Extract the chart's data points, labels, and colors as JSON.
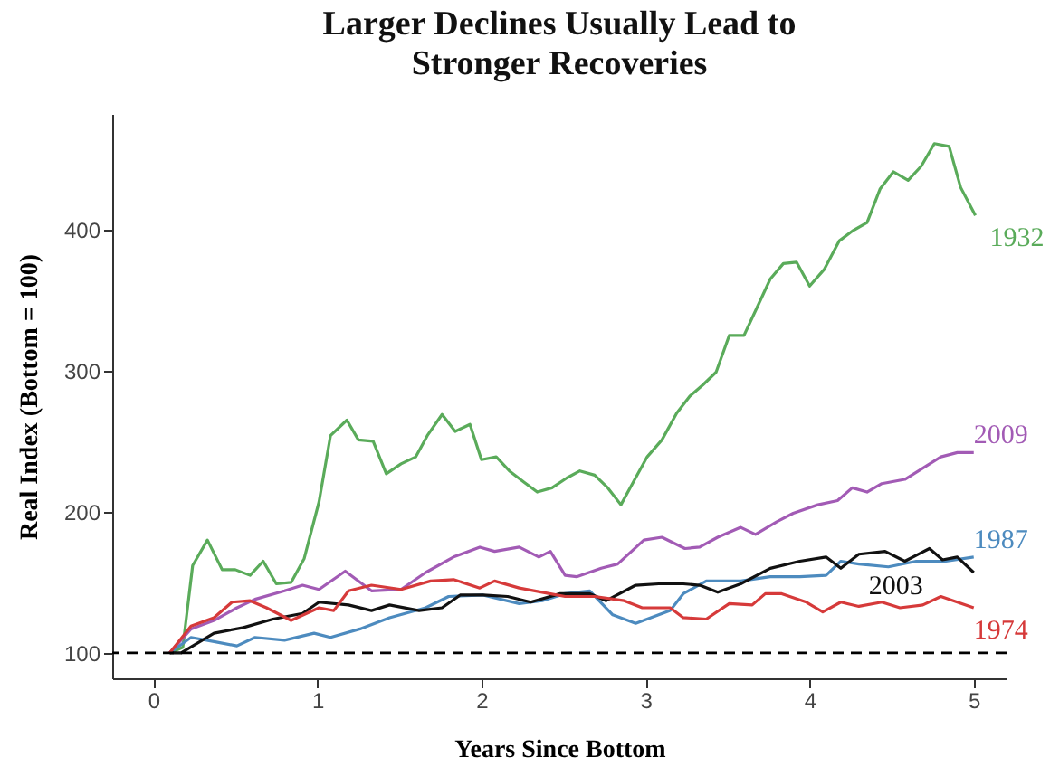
{
  "chart_data": {
    "type": "line",
    "title": "Larger Declines Usually Lead to Stronger Recoveries",
    "xlabel": "Years Since Bottom",
    "ylabel": "Real Index (Bottom = 100)",
    "xlim": [
      -0.25,
      5.2
    ],
    "xticks": [
      0,
      1,
      2,
      3,
      4,
      5
    ],
    "ylim": [
      82,
      482
    ],
    "yticks": [
      100,
      200,
      300,
      400
    ],
    "grid": false,
    "ref_lines": [
      {
        "axis": "y",
        "value": 100,
        "color": "#000000",
        "line_style": "dashed"
      }
    ],
    "series": [
      {
        "name": "1932",
        "color": "#5aab5a",
        "x": [
          0.1,
          0.18,
          0.24,
          0.33,
          0.42,
          0.5,
          0.59,
          0.67,
          0.75,
          0.84,
          0.92,
          1.01,
          1.08,
          1.18,
          1.25,
          1.34,
          1.42,
          1.51,
          1.6,
          1.67,
          1.76,
          1.84,
          1.93,
          2.0,
          2.09,
          2.17,
          2.26,
          2.34,
          2.43,
          2.52,
          2.6,
          2.69,
          2.77,
          2.85,
          2.93,
          3.01,
          3.1,
          3.19,
          3.27,
          3.35,
          3.43,
          3.51,
          3.6,
          3.68,
          3.76,
          3.84,
          3.92,
          4.0,
          4.09,
          4.18,
          4.26,
          4.35,
          4.43,
          4.51,
          4.6,
          4.68,
          4.76,
          4.85,
          4.92,
          5.01
        ],
        "values": [
          100,
          104,
          162,
          180,
          159,
          159,
          155,
          165,
          149,
          150,
          167,
          207,
          254,
          265,
          251,
          250,
          227,
          234,
          239,
          254,
          269,
          257,
          262,
          237,
          239,
          229,
          221,
          214,
          217,
          224,
          229,
          226,
          217,
          205,
          222,
          239,
          251,
          270,
          282,
          290,
          299,
          325,
          325,
          345,
          365,
          376,
          377,
          360,
          372,
          392,
          399,
          405,
          429,
          441,
          435,
          445,
          461,
          459,
          430,
          410
        ]
      },
      {
        "name": "2009",
        "color": "#a25bb5",
        "x": [
          0.1,
          0.23,
          0.37,
          0.51,
          0.62,
          0.8,
          0.91,
          1.01,
          1.17,
          1.33,
          1.51,
          1.66,
          1.83,
          1.99,
          2.08,
          2.23,
          2.35,
          2.42,
          2.51,
          2.58,
          2.73,
          2.83,
          2.99,
          3.1,
          3.24,
          3.33,
          3.44,
          3.58,
          3.67,
          3.8,
          3.9,
          4.05,
          4.17,
          4.26,
          4.35,
          4.44,
          4.58,
          4.69,
          4.8,
          4.9,
          5.0
        ],
        "values": [
          100,
          117,
          123,
          132,
          138,
          144,
          148,
          145,
          158,
          144,
          145,
          157,
          168,
          175,
          172,
          175,
          168,
          172,
          155,
          154,
          160,
          163,
          180,
          182,
          174,
          175,
          182,
          189,
          184,
          193,
          199,
          205,
          208,
          217,
          214,
          220,
          223,
          231,
          239,
          242,
          242
        ]
      },
      {
        "name": "1987",
        "color": "#4d8bbf",
        "x": [
          0.1,
          0.23,
          0.37,
          0.51,
          0.62,
          0.8,
          0.98,
          1.08,
          1.26,
          1.44,
          1.66,
          1.8,
          2.01,
          2.23,
          2.37,
          2.51,
          2.66,
          2.8,
          2.94,
          3.08,
          3.15,
          3.23,
          3.37,
          3.58,
          3.76,
          3.94,
          4.1,
          4.19,
          4.3,
          4.48,
          4.65,
          4.83,
          5.0
        ],
        "values": [
          100,
          111,
          108,
          105,
          111,
          109,
          114,
          111,
          117,
          125,
          132,
          140,
          141,
          135,
          137,
          142,
          144,
          127,
          121,
          127,
          130,
          142,
          151,
          151,
          154,
          154,
          155,
          165,
          163,
          161,
          165,
          165,
          168
        ]
      },
      {
        "name": "2003",
        "color": "#111111",
        "x": [
          0.1,
          0.17,
          0.37,
          0.55,
          0.73,
          0.91,
          1.01,
          1.19,
          1.33,
          1.44,
          1.62,
          1.76,
          1.87,
          2.01,
          2.16,
          2.3,
          2.48,
          2.66,
          2.76,
          2.94,
          3.08,
          3.23,
          3.33,
          3.44,
          3.58,
          3.76,
          3.94,
          4.1,
          4.19,
          4.3,
          4.46,
          4.58,
          4.73,
          4.81,
          4.9,
          5.0
        ],
        "values": [
          100,
          100,
          114,
          118,
          124,
          128,
          136,
          134,
          130,
          134,
          130,
          132,
          141,
          141,
          140,
          136,
          142,
          142,
          137,
          148,
          149,
          149,
          148,
          143,
          149,
          160,
          165,
          168,
          160,
          170,
          172,
          165,
          174,
          166,
          168,
          157
        ]
      },
      {
        "name": "1974",
        "color": "#d63a3a",
        "x": [
          0.1,
          0.23,
          0.37,
          0.48,
          0.59,
          0.69,
          0.84,
          1.01,
          1.1,
          1.19,
          1.33,
          1.51,
          1.69,
          1.83,
          1.99,
          2.08,
          2.23,
          2.37,
          2.51,
          2.69,
          2.87,
          2.98,
          3.15,
          3.23,
          3.37,
          3.51,
          3.65,
          3.73,
          3.83,
          3.98,
          4.08,
          4.19,
          4.3,
          4.44,
          4.55,
          4.69,
          4.8,
          4.9,
          5.0
        ],
        "values": [
          100,
          119,
          125,
          136,
          137,
          132,
          123,
          132,
          130,
          144,
          148,
          145,
          151,
          152,
          146,
          151,
          146,
          143,
          140,
          140,
          137,
          132,
          132,
          125,
          124,
          135,
          134,
          142,
          142,
          136,
          129,
          136,
          133,
          136,
          132,
          134,
          140,
          136,
          132
        ]
      }
    ]
  }
}
